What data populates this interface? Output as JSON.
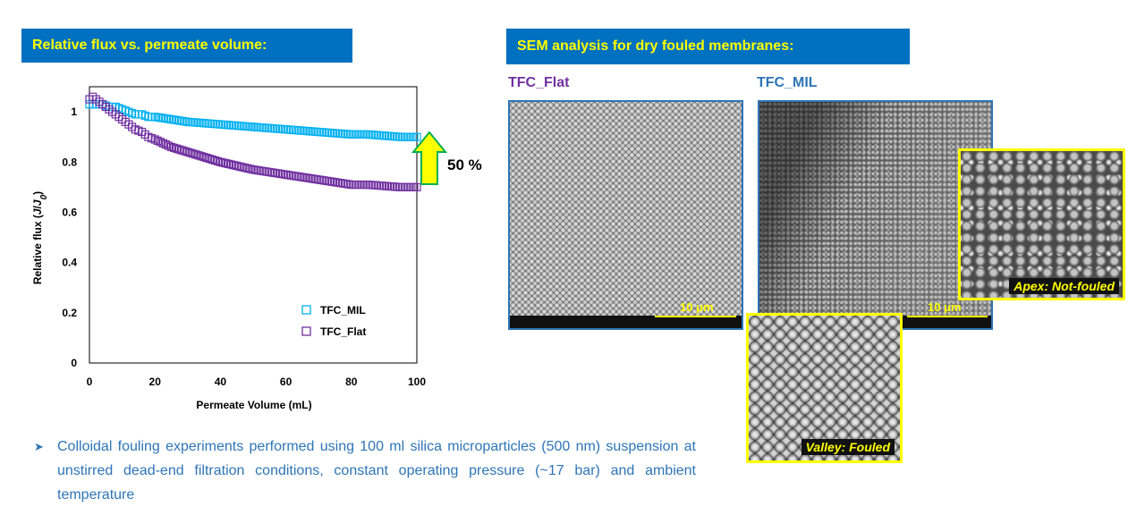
{
  "left_panel": {
    "title": "Relative flux vs. permeate volume:"
  },
  "right_panel": {
    "title": "SEM analysis for dry fouled membranes:",
    "image_labels": [
      "TFC_Flat",
      "TFC_MIL"
    ],
    "scale_bar_label": "10 μm",
    "overlay_labels": {
      "apex": "Apex: Not-fouled",
      "valley": "Valley: Fouled"
    },
    "sem_colors": {
      "flat_frame": "#2e75b6",
      "inset_frame": "#ffff00"
    }
  },
  "annotation": {
    "improvement_label": "50 %",
    "arrow_color": "#ffff00",
    "arrow_outline": "#00b050"
  },
  "footnote": "Colloidal fouling experiments performed using 100 ml silica microparticles (500 nm) suspension at unstirred dead-end filtration conditions, constant operating pressure (~17 bar) and ambient temperature",
  "chart_data": {
    "type": "scatter",
    "xlabel": "Permeate Volume (mL)",
    "ylabel": "Relative flux (J/J0)",
    "xlim": [
      0,
      100
    ],
    "ylim": [
      0,
      1.0
    ],
    "x_ticks": [
      0,
      20,
      40,
      60,
      80,
      100
    ],
    "y_ticks": [
      0,
      0.2,
      0.4,
      0.6,
      0.8,
      1
    ],
    "grid": false,
    "legend_position": "bottom-right",
    "marker": "open-square",
    "series": [
      {
        "name": "TFC_MIL",
        "color": "#00b0f0",
        "x": [
          0,
          1,
          2,
          4,
          6,
          8,
          10,
          12,
          14,
          16,
          18,
          20,
          25,
          30,
          35,
          40,
          45,
          50,
          55,
          60,
          65,
          70,
          75,
          80,
          85,
          90,
          95,
          100
        ],
        "y": [
          1.03,
          1.03,
          1.03,
          1.03,
          1.02,
          1.02,
          1.01,
          1.0,
          0.99,
          0.99,
          0.98,
          0.98,
          0.97,
          0.96,
          0.955,
          0.95,
          0.945,
          0.94,
          0.935,
          0.93,
          0.925,
          0.92,
          0.915,
          0.91,
          0.91,
          0.905,
          0.9,
          0.9
        ]
      },
      {
        "name": "TFC_Flat",
        "color": "#7030a0",
        "x": [
          0,
          1,
          2,
          4,
          6,
          8,
          10,
          12,
          14,
          16,
          18,
          20,
          25,
          30,
          35,
          40,
          45,
          50,
          55,
          60,
          65,
          70,
          75,
          80,
          85,
          90,
          95,
          100
        ],
        "y": [
          1.05,
          1.06,
          1.05,
          1.03,
          1.01,
          0.99,
          0.97,
          0.95,
          0.93,
          0.92,
          0.9,
          0.89,
          0.86,
          0.84,
          0.82,
          0.8,
          0.785,
          0.77,
          0.76,
          0.75,
          0.74,
          0.73,
          0.72,
          0.71,
          0.71,
          0.705,
          0.7,
          0.7
        ]
      }
    ]
  }
}
